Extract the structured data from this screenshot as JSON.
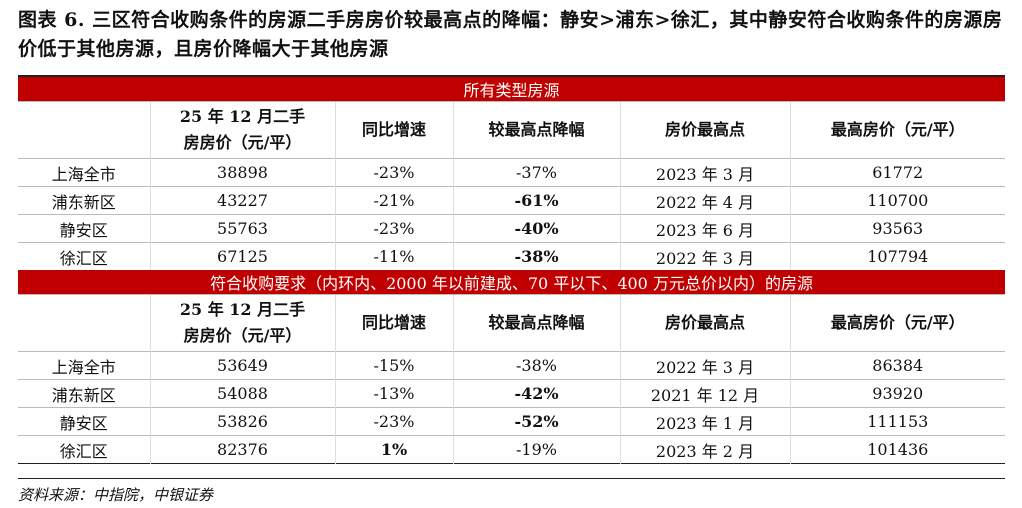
{
  "title": "图表 6. 三区符合收购条件的房源二手房房价较最高点的降幅：静安>浦东>徐汇，其中静安符合收购条件的房源房价低于其他房源，且房价降幅大于其他房源",
  "columns": [
    "",
    "25 年 12 月二手房房价（元/平）",
    "同比增速",
    "较最高点降幅",
    "房价最高点",
    "最高房价（元/平）"
  ],
  "sections": [
    {
      "heading": "所有类型房源",
      "rows": [
        [
          "上海全市",
          "38898",
          "-23%",
          "-37%",
          "2023 年 3 月",
          "61772"
        ],
        [
          "浦东新区",
          "43227",
          "-21%",
          "-61%",
          "2022 年 4 月",
          "110700"
        ],
        [
          "静安区",
          "55763",
          "-23%",
          "-40%",
          "2023 年 6 月",
          "93563"
        ],
        [
          "徐汇区",
          "67125",
          "-11%",
          "-38%",
          "2022 年 3 月",
          "107794"
        ]
      ],
      "bold": [
        [
          1,
          3
        ],
        [
          2,
          3
        ],
        [
          3,
          3
        ]
      ]
    },
    {
      "heading": "符合收购要求（内环内、2000 年以前建成、70 平以下、400 万元总价以内）的房源",
      "rows": [
        [
          "上海全市",
          "53649",
          "-15%",
          "-38%",
          "2022 年 3 月",
          "86384"
        ],
        [
          "浦东新区",
          "54088",
          "-13%",
          "-42%",
          "2021 年 12 月",
          "93920"
        ],
        [
          "静安区",
          "53826",
          "-23%",
          "-52%",
          "2023 年 1 月",
          "111153"
        ],
        [
          "徐汇区",
          "82376",
          "1%",
          "-19%",
          "2023 年 2 月",
          "101436"
        ]
      ],
      "bold": [
        [
          1,
          3
        ],
        [
          2,
          3
        ],
        [
          3,
          2
        ]
      ]
    }
  ],
  "source": "资料来源：中指院，中银证券"
}
